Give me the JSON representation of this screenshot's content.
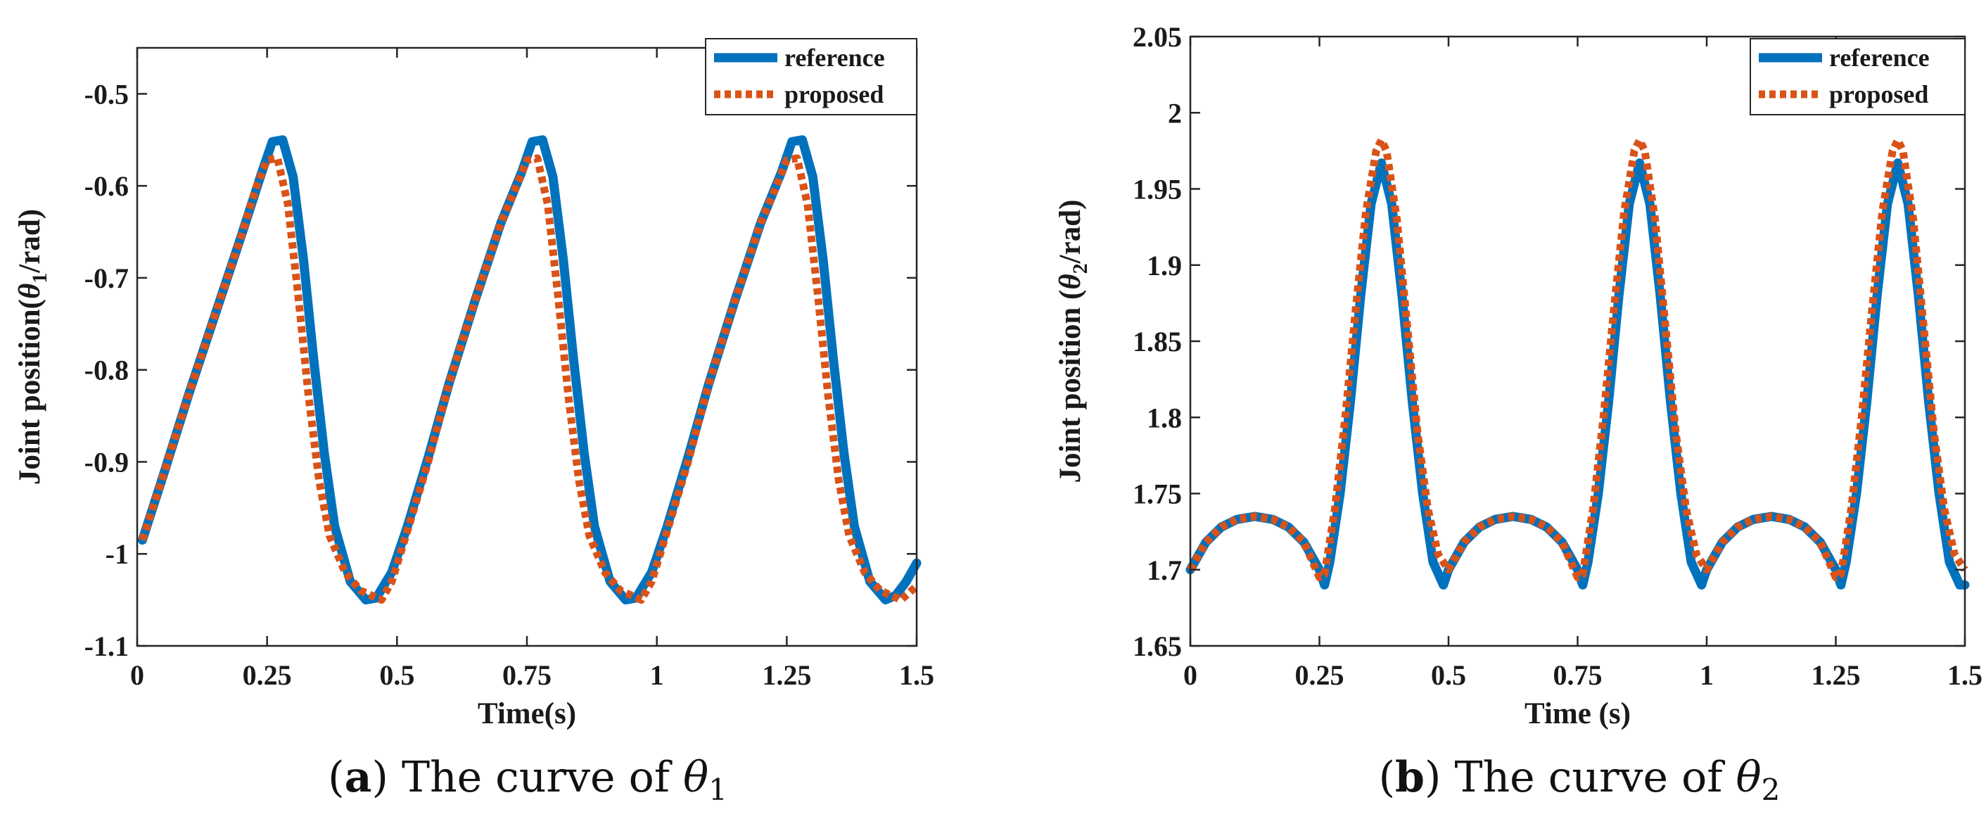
{
  "chart_data": [
    {
      "type": "line",
      "panel_letter": "a",
      "caption_prefix": "The curve of ",
      "caption_symbol": "θ",
      "caption_subscript": "1",
      "xlabel": "Time(s)",
      "ylabel_prefix": "Joint position(",
      "ylabel_symbol": "θ",
      "ylabel_subscript": "1",
      "ylabel_suffix": "/rad)",
      "xlim": [
        0,
        1.5
      ],
      "ylim": [
        -1.1,
        -0.45
      ],
      "xticks": [
        0,
        0.25,
        0.5,
        0.75,
        1,
        1.25,
        1.5
      ],
      "xtick_labels": [
        "0",
        "0.25",
        "0.5",
        "0.75",
        "1",
        "1.25",
        "1.5"
      ],
      "yticks": [
        -1.1,
        -1,
        -0.9,
        -0.8,
        -0.7,
        -0.6,
        -0.5
      ],
      "ytick_labels": [
        "-1.1",
        "-1",
        "-0.9",
        "-0.8",
        "-0.7",
        "-0.6",
        "-0.5"
      ],
      "grid": false,
      "legend_position": "top-right",
      "series": [
        {
          "name": "reference",
          "color": "#0072BD",
          "style": "solid",
          "points": [
            [
              0.01,
              -0.985
            ],
            [
              0.05,
              -0.915
            ],
            [
              0.1,
              -0.825
            ],
            [
              0.15,
              -0.74
            ],
            [
              0.2,
              -0.655
            ],
            [
              0.24,
              -0.585
            ],
            [
              0.26,
              -0.552
            ],
            [
              0.28,
              -0.55
            ],
            [
              0.3,
              -0.59
            ],
            [
              0.32,
              -0.68
            ],
            [
              0.34,
              -0.79
            ],
            [
              0.36,
              -0.89
            ],
            [
              0.38,
              -0.97
            ],
            [
              0.41,
              -1.03
            ],
            [
              0.44,
              -1.05
            ],
            [
              0.46,
              -1.048
            ],
            [
              0.49,
              -1.02
            ],
            [
              0.52,
              -0.97
            ],
            [
              0.56,
              -0.895
            ],
            [
              0.6,
              -0.815
            ],
            [
              0.65,
              -0.725
            ],
            [
              0.7,
              -0.64
            ],
            [
              0.74,
              -0.585
            ],
            [
              0.76,
              -0.552
            ],
            [
              0.78,
              -0.55
            ],
            [
              0.8,
              -0.59
            ],
            [
              0.82,
              -0.68
            ],
            [
              0.84,
              -0.79
            ],
            [
              0.86,
              -0.89
            ],
            [
              0.88,
              -0.97
            ],
            [
              0.91,
              -1.03
            ],
            [
              0.94,
              -1.05
            ],
            [
              0.96,
              -1.048
            ],
            [
              0.99,
              -1.02
            ],
            [
              1.02,
              -0.97
            ],
            [
              1.06,
              -0.895
            ],
            [
              1.1,
              -0.815
            ],
            [
              1.15,
              -0.725
            ],
            [
              1.2,
              -0.64
            ],
            [
              1.24,
              -0.585
            ],
            [
              1.26,
              -0.552
            ],
            [
              1.28,
              -0.55
            ],
            [
              1.3,
              -0.59
            ],
            [
              1.32,
              -0.68
            ],
            [
              1.34,
              -0.79
            ],
            [
              1.36,
              -0.89
            ],
            [
              1.38,
              -0.97
            ],
            [
              1.41,
              -1.03
            ],
            [
              1.44,
              -1.05
            ],
            [
              1.46,
              -1.045
            ],
            [
              1.48,
              -1.03
            ],
            [
              1.5,
              -1.01
            ]
          ]
        },
        {
          "name": "proposed",
          "color": "#D95319",
          "style": "dotted",
          "points": [
            [
              0.01,
              -0.985
            ],
            [
              0.05,
              -0.915
            ],
            [
              0.1,
              -0.825
            ],
            [
              0.15,
              -0.74
            ],
            [
              0.2,
              -0.655
            ],
            [
              0.23,
              -0.6
            ],
            [
              0.25,
              -0.572
            ],
            [
              0.27,
              -0.57
            ],
            [
              0.29,
              -0.62
            ],
            [
              0.31,
              -0.72
            ],
            [
              0.33,
              -0.83
            ],
            [
              0.35,
              -0.92
            ],
            [
              0.37,
              -0.98
            ],
            [
              0.4,
              -1.02
            ],
            [
              0.43,
              -1.04
            ],
            [
              0.47,
              -1.05
            ],
            [
              0.49,
              -1.03
            ],
            [
              0.52,
              -0.975
            ],
            [
              0.56,
              -0.9
            ],
            [
              0.6,
              -0.815
            ],
            [
              0.65,
              -0.725
            ],
            [
              0.7,
              -0.64
            ],
            [
              0.73,
              -0.6
            ],
            [
              0.75,
              -0.572
            ],
            [
              0.77,
              -0.57
            ],
            [
              0.79,
              -0.62
            ],
            [
              0.81,
              -0.72
            ],
            [
              0.83,
              -0.83
            ],
            [
              0.85,
              -0.92
            ],
            [
              0.87,
              -0.98
            ],
            [
              0.9,
              -1.02
            ],
            [
              0.93,
              -1.04
            ],
            [
              0.97,
              -1.05
            ],
            [
              0.99,
              -1.03
            ],
            [
              1.02,
              -0.975
            ],
            [
              1.06,
              -0.9
            ],
            [
              1.1,
              -0.815
            ],
            [
              1.15,
              -0.725
            ],
            [
              1.2,
              -0.64
            ],
            [
              1.23,
              -0.6
            ],
            [
              1.25,
              -0.572
            ],
            [
              1.27,
              -0.57
            ],
            [
              1.29,
              -0.62
            ],
            [
              1.31,
              -0.72
            ],
            [
              1.33,
              -0.83
            ],
            [
              1.35,
              -0.92
            ],
            [
              1.37,
              -0.98
            ],
            [
              1.4,
              -1.02
            ],
            [
              1.43,
              -1.04
            ],
            [
              1.47,
              -1.05
            ],
            [
              1.49,
              -1.04
            ],
            [
              1.5,
              -1.035
            ]
          ]
        }
      ]
    },
    {
      "type": "line",
      "panel_letter": "b",
      "caption_prefix": "The curve of ",
      "caption_symbol": "θ",
      "caption_subscript": "2",
      "xlabel": "Time (s)",
      "ylabel_prefix": "Joint position (",
      "ylabel_symbol": "θ",
      "ylabel_subscript": "2",
      "ylabel_suffix": "/rad)",
      "xlim": [
        0,
        1.5
      ],
      "ylim": [
        1.65,
        2.05
      ],
      "xticks": [
        0,
        0.25,
        0.5,
        0.75,
        1,
        1.25,
        1.5
      ],
      "xtick_labels": [
        "0",
        "0.25",
        "0.5",
        "0.75",
        "1",
        "1.25",
        "1.5"
      ],
      "yticks": [
        1.65,
        1.7,
        1.75,
        1.8,
        1.85,
        1.9,
        1.95,
        2,
        2.05
      ],
      "ytick_labels": [
        "1.65",
        "1.7",
        "1.75",
        "1.8",
        "1.85",
        "1.9",
        "1.95",
        "2",
        "2.05"
      ],
      "grid": false,
      "legend_position": "top-right",
      "series": [
        {
          "name": "reference",
          "color": "#0072BD",
          "style": "solid",
          "points": [
            [
              0,
              1.7
            ],
            [
              0.03,
              1.718
            ],
            [
              0.06,
              1.728
            ],
            [
              0.09,
              1.733
            ],
            [
              0.125,
              1.735
            ],
            [
              0.16,
              1.733
            ],
            [
              0.19,
              1.728
            ],
            [
              0.22,
              1.718
            ],
            [
              0.25,
              1.7
            ],
            [
              0.26,
              1.69
            ],
            [
              0.27,
              1.705
            ],
            [
              0.29,
              1.75
            ],
            [
              0.31,
              1.81
            ],
            [
              0.33,
              1.88
            ],
            [
              0.35,
              1.94
            ],
            [
              0.37,
              1.967
            ],
            [
              0.39,
              1.94
            ],
            [
              0.41,
              1.88
            ],
            [
              0.43,
              1.81
            ],
            [
              0.45,
              1.75
            ],
            [
              0.47,
              1.705
            ],
            [
              0.49,
              1.69
            ],
            [
              0.5,
              1.7
            ],
            [
              0.53,
              1.718
            ],
            [
              0.56,
              1.728
            ],
            [
              0.59,
              1.733
            ],
            [
              0.625,
              1.735
            ],
            [
              0.66,
              1.733
            ],
            [
              0.69,
              1.728
            ],
            [
              0.72,
              1.718
            ],
            [
              0.75,
              1.7
            ],
            [
              0.76,
              1.69
            ],
            [
              0.77,
              1.705
            ],
            [
              0.79,
              1.75
            ],
            [
              0.81,
              1.81
            ],
            [
              0.83,
              1.88
            ],
            [
              0.85,
              1.94
            ],
            [
              0.87,
              1.967
            ],
            [
              0.89,
              1.94
            ],
            [
              0.91,
              1.88
            ],
            [
              0.93,
              1.81
            ],
            [
              0.95,
              1.75
            ],
            [
              0.97,
              1.705
            ],
            [
              0.99,
              1.69
            ],
            [
              1.0,
              1.7
            ],
            [
              1.03,
              1.718
            ],
            [
              1.06,
              1.728
            ],
            [
              1.09,
              1.733
            ],
            [
              1.125,
              1.735
            ],
            [
              1.16,
              1.733
            ],
            [
              1.19,
              1.728
            ],
            [
              1.22,
              1.718
            ],
            [
              1.25,
              1.7
            ],
            [
              1.26,
              1.69
            ],
            [
              1.27,
              1.705
            ],
            [
              1.29,
              1.75
            ],
            [
              1.31,
              1.81
            ],
            [
              1.33,
              1.88
            ],
            [
              1.35,
              1.94
            ],
            [
              1.37,
              1.967
            ],
            [
              1.39,
              1.94
            ],
            [
              1.41,
              1.88
            ],
            [
              1.43,
              1.81
            ],
            [
              1.45,
              1.75
            ],
            [
              1.47,
              1.705
            ],
            [
              1.49,
              1.69
            ],
            [
              1.5,
              1.69
            ]
          ]
        },
        {
          "name": "proposed",
          "color": "#D95319",
          "style": "dotted",
          "points": [
            [
              0,
              1.7
            ],
            [
              0.03,
              1.718
            ],
            [
              0.06,
              1.728
            ],
            [
              0.09,
              1.733
            ],
            [
              0.125,
              1.735
            ],
            [
              0.16,
              1.733
            ],
            [
              0.19,
              1.728
            ],
            [
              0.22,
              1.718
            ],
            [
              0.25,
              1.695
            ],
            [
              0.26,
              1.697
            ],
            [
              0.28,
              1.74
            ],
            [
              0.3,
              1.8
            ],
            [
              0.32,
              1.87
            ],
            [
              0.34,
              1.935
            ],
            [
              0.36,
              1.975
            ],
            [
              0.37,
              1.982
            ],
            [
              0.38,
              1.975
            ],
            [
              0.4,
              1.93
            ],
            [
              0.42,
              1.86
            ],
            [
              0.44,
              1.79
            ],
            [
              0.46,
              1.74
            ],
            [
              0.48,
              1.71
            ],
            [
              0.5,
              1.7
            ],
            [
              0.53,
              1.718
            ],
            [
              0.56,
              1.728
            ],
            [
              0.59,
              1.733
            ],
            [
              0.625,
              1.735
            ],
            [
              0.66,
              1.733
            ],
            [
              0.69,
              1.728
            ],
            [
              0.72,
              1.718
            ],
            [
              0.75,
              1.695
            ],
            [
              0.76,
              1.697
            ],
            [
              0.78,
              1.74
            ],
            [
              0.8,
              1.8
            ],
            [
              0.82,
              1.87
            ],
            [
              0.84,
              1.935
            ],
            [
              0.86,
              1.975
            ],
            [
              0.87,
              1.982
            ],
            [
              0.88,
              1.975
            ],
            [
              0.9,
              1.93
            ],
            [
              0.92,
              1.86
            ],
            [
              0.94,
              1.79
            ],
            [
              0.96,
              1.74
            ],
            [
              0.98,
              1.71
            ],
            [
              1.0,
              1.7
            ],
            [
              1.03,
              1.718
            ],
            [
              1.06,
              1.728
            ],
            [
              1.09,
              1.733
            ],
            [
              1.125,
              1.735
            ],
            [
              1.16,
              1.733
            ],
            [
              1.19,
              1.728
            ],
            [
              1.22,
              1.718
            ],
            [
              1.25,
              1.695
            ],
            [
              1.26,
              1.697
            ],
            [
              1.28,
              1.74
            ],
            [
              1.3,
              1.8
            ],
            [
              1.32,
              1.87
            ],
            [
              1.34,
              1.935
            ],
            [
              1.36,
              1.975
            ],
            [
              1.37,
              1.982
            ],
            [
              1.38,
              1.975
            ],
            [
              1.4,
              1.93
            ],
            [
              1.42,
              1.86
            ],
            [
              1.44,
              1.79
            ],
            [
              1.46,
              1.74
            ],
            [
              1.48,
              1.71
            ],
            [
              1.5,
              1.7
            ]
          ]
        }
      ]
    }
  ]
}
